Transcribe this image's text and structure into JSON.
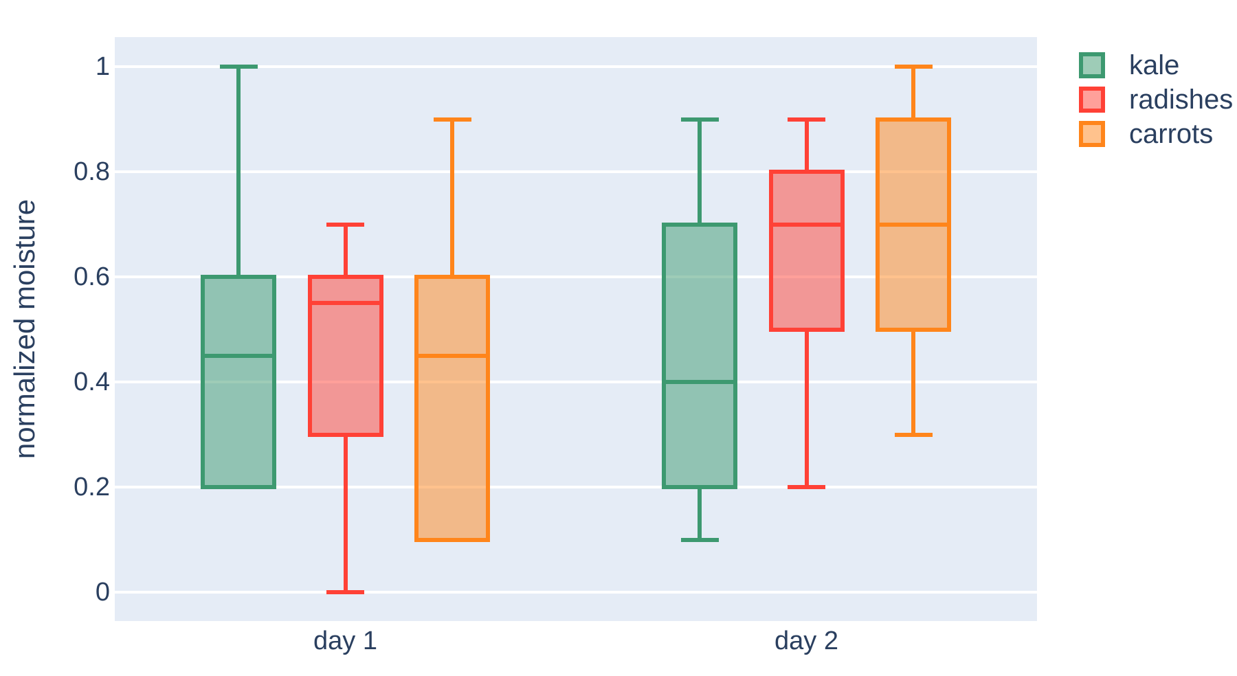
{
  "figure": {
    "background_color": "#ffffff",
    "plot_background_color": "#E5ECF6",
    "gridline_color": "#ffffff",
    "text_color": "#2a3f5f"
  },
  "chart_data": {
    "type": "box",
    "orientation": "vertical",
    "grid": true,
    "legend_position": "top-right",
    "title": "",
    "xlabel": "",
    "ylabel": "normalized moisture",
    "categories": [
      "day 1",
      "day 2"
    ],
    "yticks": [
      0,
      0.2,
      0.4,
      0.6,
      0.8,
      1
    ],
    "ylim": [
      -0.056,
      1.056
    ],
    "box_fill_opacity": 0.5,
    "series": [
      {
        "name": "kale",
        "color": "#3D9970",
        "boxes": [
          {
            "category": "day 1",
            "min": 0.2,
            "q1": 0.2,
            "median": 0.45,
            "q3": 0.6,
            "max": 1.0
          },
          {
            "category": "day 2",
            "min": 0.1,
            "q1": 0.2,
            "median": 0.4,
            "q3": 0.7,
            "max": 0.9
          }
        ]
      },
      {
        "name": "radishes",
        "color": "#FF4136",
        "boxes": [
          {
            "category": "day 1",
            "min": 0.0,
            "q1": 0.3,
            "median": 0.55,
            "q3": 0.6,
            "max": 0.7
          },
          {
            "category": "day 2",
            "min": 0.2,
            "q1": 0.5,
            "median": 0.7,
            "q3": 0.8,
            "max": 0.9
          }
        ]
      },
      {
        "name": "carrots",
        "color": "#FF851B",
        "boxes": [
          {
            "category": "day 1",
            "min": 0.1,
            "q1": 0.1,
            "median": 0.45,
            "q3": 0.6,
            "max": 0.9
          },
          {
            "category": "day 2",
            "min": 0.3,
            "q1": 0.5,
            "median": 0.7,
            "q3": 0.9,
            "max": 1.0
          }
        ]
      }
    ]
  },
  "y_axis": {
    "title": "normalized moisture",
    "tick_labels": [
      "0",
      "0.2",
      "0.4",
      "0.6",
      "0.8",
      "1"
    ]
  },
  "x_axis": {
    "tick_labels": [
      "day 1",
      "day 2"
    ]
  },
  "legend": {
    "items": [
      {
        "label": "kale",
        "color": "#3D9970"
      },
      {
        "label": "radishes",
        "color": "#FF4136"
      },
      {
        "label": "carrots",
        "color": "#FF851B"
      }
    ]
  }
}
